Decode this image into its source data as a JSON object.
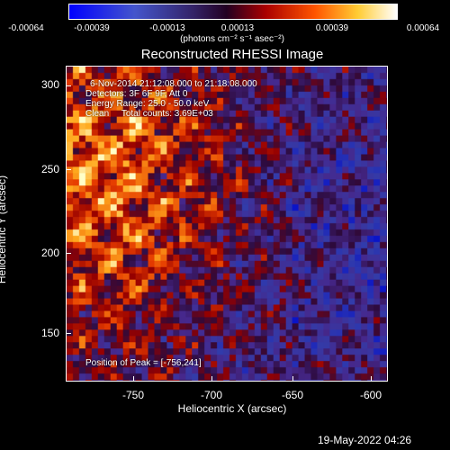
{
  "colorbar": {
    "ticks": [
      "-0.00064",
      "-0.00039",
      "-0.00013",
      "0.00013",
      "0.00039",
      "0.00064"
    ],
    "units": "(photons cm⁻² s⁻¹ asec⁻²)"
  },
  "title": "Reconstructed RHESSI Image",
  "annotations": {
    "time": "6-Nov-2014 21:12:08.000 to 21:18:08.000",
    "detectors": "Detectors: 3F 6F 9F, Att 0",
    "energy": "Energy Range: 25.0 - 50.0 keV",
    "clean": "Clean     Total counts: 3.69E+03",
    "peak": "Position of Peak = [-756,241]"
  },
  "axes": {
    "xlabel": "Heliocentric X (arcsec)",
    "ylabel": "Heliocentric Y (arcsec)",
    "xticks": [
      "-750",
      "-700",
      "-650",
      "-600"
    ],
    "yticks": [
      "300",
      "250",
      "200",
      "150"
    ]
  },
  "timestamp": "19-May-2022 04:26",
  "colors": {
    "colormap": [
      "#0000ff",
      "#3344cc",
      "#331166",
      "#440044",
      "#990000",
      "#ff3300",
      "#ff9900",
      "#ffff66",
      "#ffffff"
    ]
  }
}
